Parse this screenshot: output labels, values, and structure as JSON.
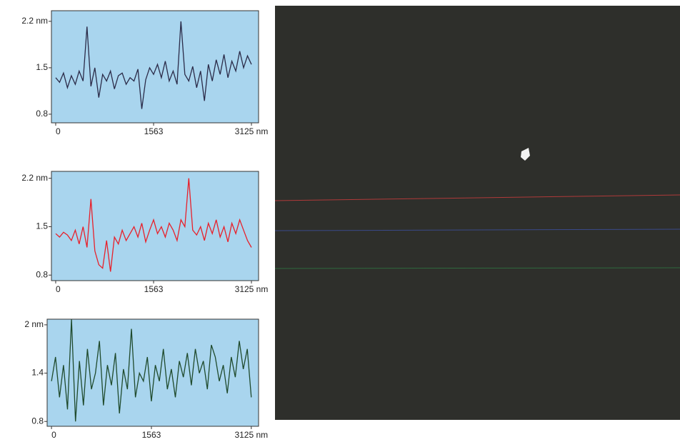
{
  "chart_data": [
    {
      "type": "line",
      "color": "#2b2b48",
      "x": [
        0,
        62.5,
        125,
        187.5,
        250,
        312.5,
        375,
        437.5,
        500,
        562.5,
        625,
        687.5,
        750,
        812.5,
        875,
        937.5,
        1000,
        1062.5,
        1125,
        1187.5,
        1250,
        1312.5,
        1375,
        1437.5,
        1500,
        1562.5,
        1625,
        1687.5,
        1750,
        1812.5,
        1875,
        1937.5,
        2000,
        2062.5,
        2125,
        2187.5,
        2250,
        2312.5,
        2375,
        2437.5,
        2500,
        2562.5,
        2625,
        2687.5,
        2750,
        2812.5,
        2875,
        2937.5,
        3000,
        3062.5,
        3125
      ],
      "values": [
        1.35,
        1.28,
        1.42,
        1.2,
        1.38,
        1.25,
        1.45,
        1.3,
        2.12,
        1.22,
        1.5,
        1.05,
        1.4,
        1.3,
        1.45,
        1.18,
        1.38,
        1.42,
        1.25,
        1.35,
        1.3,
        1.48,
        0.88,
        1.32,
        1.5,
        1.4,
        1.55,
        1.35,
        1.6,
        1.3,
        1.45,
        1.25,
        2.2,
        1.4,
        1.3,
        1.52,
        1.2,
        1.45,
        1.0,
        1.55,
        1.3,
        1.62,
        1.4,
        1.7,
        1.35,
        1.6,
        1.45,
        1.75,
        1.5,
        1.68,
        1.55
      ],
      "xlim": [
        -68,
        3239
      ],
      "ylim": [
        0.67,
        2.36
      ],
      "xticks": [
        0,
        1563,
        {
          "value": 3125,
          "label": "3125 nm"
        }
      ],
      "yticks": [
        {
          "value": 2.2,
          "label": "2.2 nm"
        },
        1.5,
        0.8
      ]
    },
    {
      "type": "line",
      "color": "#e8202a",
      "x": [
        0,
        62.5,
        125,
        187.5,
        250,
        312.5,
        375,
        437.5,
        500,
        562.5,
        625,
        687.5,
        750,
        812.5,
        875,
        937.5,
        1000,
        1062.5,
        1125,
        1187.5,
        1250,
        1312.5,
        1375,
        1437.5,
        1500,
        1562.5,
        1625,
        1687.5,
        1750,
        1812.5,
        1875,
        1937.5,
        2000,
        2062.5,
        2125,
        2187.5,
        2250,
        2312.5,
        2375,
        2437.5,
        2500,
        2562.5,
        2625,
        2687.5,
        2750,
        2812.5,
        2875,
        2937.5,
        3000,
        3062.5,
        3125
      ],
      "values": [
        1.4,
        1.35,
        1.42,
        1.38,
        1.3,
        1.45,
        1.25,
        1.5,
        1.2,
        1.9,
        1.15,
        0.95,
        0.9,
        1.3,
        0.85,
        1.35,
        1.25,
        1.45,
        1.3,
        1.4,
        1.5,
        1.35,
        1.55,
        1.28,
        1.45,
        1.6,
        1.4,
        1.5,
        1.35,
        1.55,
        1.45,
        1.3,
        1.6,
        1.5,
        2.2,
        1.45,
        1.38,
        1.5,
        1.3,
        1.55,
        1.4,
        1.6,
        1.35,
        1.5,
        1.28,
        1.55,
        1.4,
        1.6,
        1.45,
        1.3,
        1.2
      ],
      "xlim": [
        -68,
        3239
      ],
      "ylim": [
        0.72,
        2.3
      ],
      "xticks": [
        0,
        1563,
        {
          "value": 3125,
          "label": "3125 nm"
        }
      ],
      "yticks": [
        {
          "value": 2.2,
          "label": "2.2 nm"
        },
        1.5,
        0.8
      ]
    },
    {
      "type": "line",
      "color": "#1f4a2c",
      "x": [
        0,
        62.5,
        125,
        187.5,
        250,
        312.5,
        375,
        437.5,
        500,
        562.5,
        625,
        687.5,
        750,
        812.5,
        875,
        937.5,
        1000,
        1062.5,
        1125,
        1187.5,
        1250,
        1312.5,
        1375,
        1437.5,
        1500,
        1562.5,
        1625,
        1687.5,
        1750,
        1812.5,
        1875,
        1937.5,
        2000,
        2062.5,
        2125,
        2187.5,
        2250,
        2312.5,
        2375,
        2437.5,
        2500,
        2562.5,
        2625,
        2687.5,
        2750,
        2812.5,
        2875,
        2937.5,
        3000,
        3062.5,
        3125
      ],
      "values": [
        1.3,
        1.6,
        1.1,
        1.5,
        0.95,
        2.07,
        0.8,
        1.55,
        1.0,
        1.7,
        1.2,
        1.4,
        1.8,
        1.0,
        1.5,
        1.25,
        1.65,
        0.9,
        1.45,
        1.2,
        1.95,
        1.1,
        1.4,
        1.3,
        1.6,
        1.05,
        1.5,
        1.3,
        1.7,
        1.2,
        1.45,
        1.1,
        1.55,
        1.35,
        1.65,
        1.25,
        1.7,
        1.4,
        1.55,
        1.2,
        1.75,
        1.6,
        1.3,
        1.5,
        1.15,
        1.6,
        1.35,
        1.8,
        1.45,
        1.7,
        1.1
      ],
      "xlim": [
        -68,
        3239
      ],
      "ylim": [
        0.74,
        2.07
      ],
      "xticks": [
        0,
        1563,
        {
          "value": 3125,
          "label": "3125 nm"
        }
      ],
      "yticks": [
        {
          "value": 2,
          "label": "2 nm"
        },
        1.4,
        0.8
      ]
    }
  ]
}
